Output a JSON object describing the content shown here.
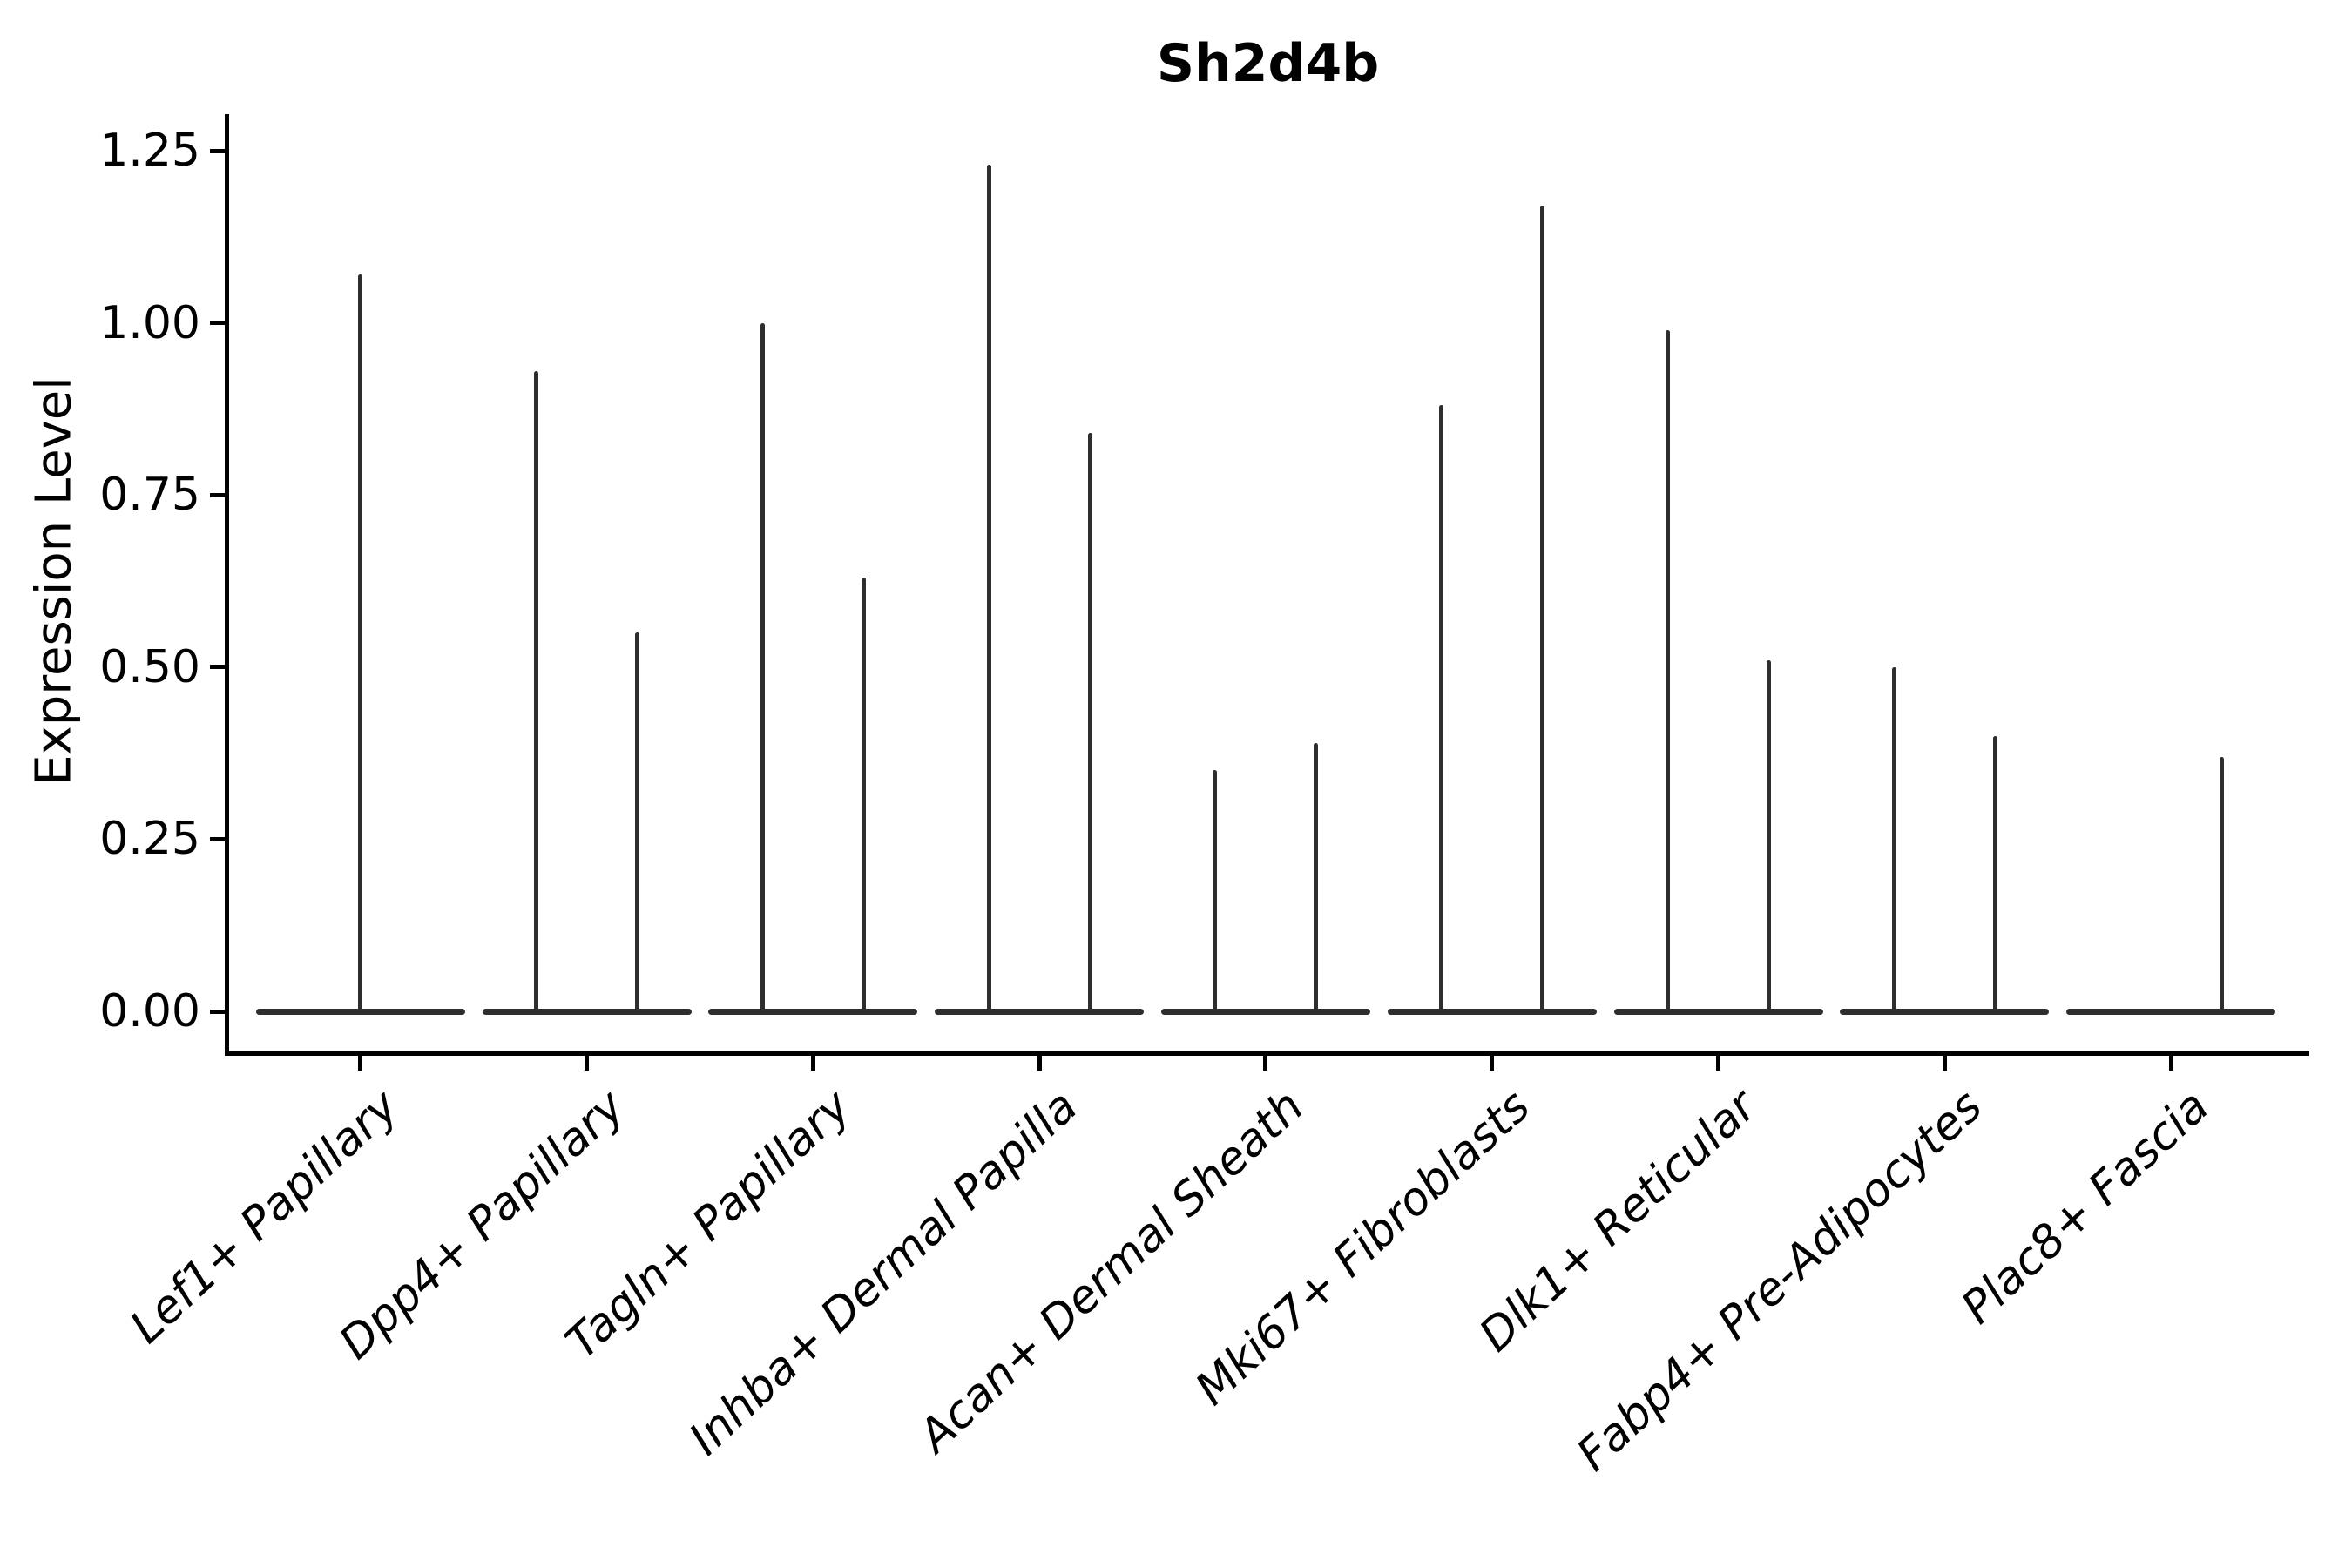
{
  "title": "Sh2d4b",
  "y_axis": {
    "label": "Expression Level",
    "ticks": [
      {
        "label": "0.00",
        "value": 0.0
      },
      {
        "label": "0.25",
        "value": 0.25
      },
      {
        "label": "0.50",
        "value": 0.5
      },
      {
        "label": "0.75",
        "value": 0.75
      },
      {
        "label": "1.00",
        "value": 1.0
      },
      {
        "label": "1.25",
        "value": 1.25
      }
    ]
  },
  "x_axis": {
    "categories": [
      "Lef1+ Papillary",
      "Dpp4+ Papillary",
      "Tagln+ Papillary",
      "Inhba+ Dermal Papilla",
      "Acan+ Dermal Sheath",
      "Mki67+ Fibroblasts",
      "Dlk1+ Reticular",
      "Fabp4+ Pre-Adipocytes",
      "Plac8+ Fascia"
    ]
  },
  "colors": {
    "violin": "#2e2e2e",
    "axis": "#000000",
    "background": "#ffffff",
    "text": "#000000"
  },
  "chart_data": {
    "type": "violin",
    "title": "Sh2d4b",
    "xlabel": "",
    "ylabel": "Expression Level",
    "ylim": [
      -0.06,
      1.3
    ],
    "yticks": [
      0.0,
      0.25,
      0.5,
      0.75,
      1.0,
      1.25
    ],
    "legend": "none",
    "grid": false,
    "description": "Single-cell gene expression violin plot; each category shows a wide flat violin base at expression 0 (most cells not expressing) with thin vertical spikes reaching the maximum expression of the few expressing cells. Most categories show two side-by-side violins (two spikes).",
    "categories": [
      "Lef1+ Papillary",
      "Dpp4+ Papillary",
      "Tagln+ Papillary",
      "Inhba+ Dermal Papilla",
      "Acan+ Dermal Sheath",
      "Mki67+ Fibroblasts",
      "Dlk1+ Reticular",
      "Fabp4+ Pre-Adipocytes",
      "Plac8+ Fascia"
    ],
    "violins": [
      {
        "category": "Lef1+ Papillary",
        "spikes": [
          {
            "position": "center",
            "max": 1.07
          }
        ]
      },
      {
        "category": "Dpp4+ Papillary",
        "spikes": [
          {
            "position": "left",
            "max": 0.93
          },
          {
            "position": "right",
            "max": 0.55
          }
        ]
      },
      {
        "category": "Tagln+ Papillary",
        "spikes": [
          {
            "position": "left",
            "max": 1.0
          },
          {
            "position": "right",
            "max": 0.63
          }
        ]
      },
      {
        "category": "Inhba+ Dermal Papilla",
        "spikes": [
          {
            "position": "left",
            "max": 1.23
          },
          {
            "position": "right",
            "max": 0.84
          }
        ]
      },
      {
        "category": "Acan+ Dermal Sheath",
        "spikes": [
          {
            "position": "left",
            "max": 0.35
          },
          {
            "position": "right",
            "max": 0.39
          }
        ]
      },
      {
        "category": "Mki67+ Fibroblasts",
        "spikes": [
          {
            "position": "left",
            "max": 0.88
          },
          {
            "position": "right",
            "max": 1.17
          }
        ]
      },
      {
        "category": "Dlk1+ Reticular",
        "spikes": [
          {
            "position": "left",
            "max": 0.99
          },
          {
            "position": "right",
            "max": 0.51
          }
        ]
      },
      {
        "category": "Fabp4+ Pre-Adipocytes",
        "spikes": [
          {
            "position": "left",
            "max": 0.5
          },
          {
            "position": "right",
            "max": 0.4
          }
        ]
      },
      {
        "category": "Plac8+ Fascia",
        "spikes": [
          {
            "position": "right",
            "max": 0.37
          }
        ]
      }
    ]
  }
}
